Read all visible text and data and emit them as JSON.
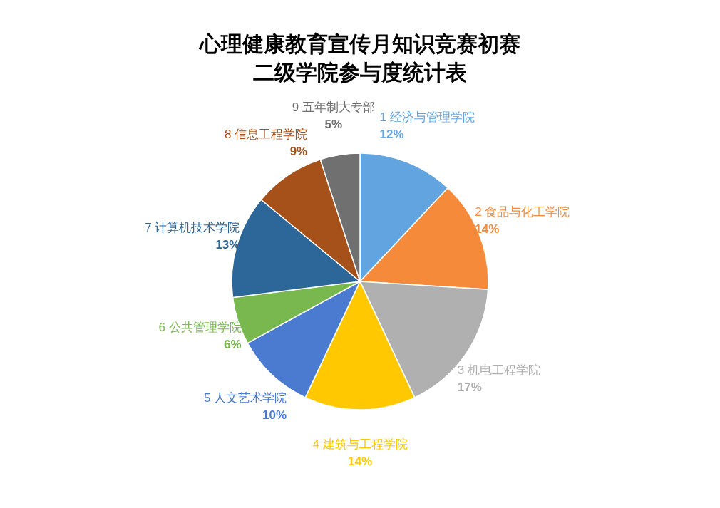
{
  "chart_data": {
    "type": "pie",
    "title": "心理健康教育宣传月知识竞赛初赛二级学院参与度统计表",
    "categories": [
      "1 经济与管理学院",
      "2 食品与化工学院",
      "3 机电工程学院",
      "4 建筑与工程学院",
      "5 人文艺术学院",
      "6 公共管理学院",
      "7 计算机技术学院",
      "8 信息工程学院",
      "9 五年制大专部"
    ],
    "values": [
      12,
      14,
      17,
      14,
      10,
      6,
      13,
      9,
      5
    ],
    "value_labels": [
      "12%",
      "14%",
      "17%",
      "14%",
      "10%",
      "6%",
      "13%",
      "9%",
      "5%"
    ],
    "colors": [
      "#62a4e0",
      "#f58a3a",
      "#b0b0b0",
      "#ffc800",
      "#4a7bd0",
      "#78b84e",
      "#2d6699",
      "#a6501a",
      "#707070"
    ]
  }
}
